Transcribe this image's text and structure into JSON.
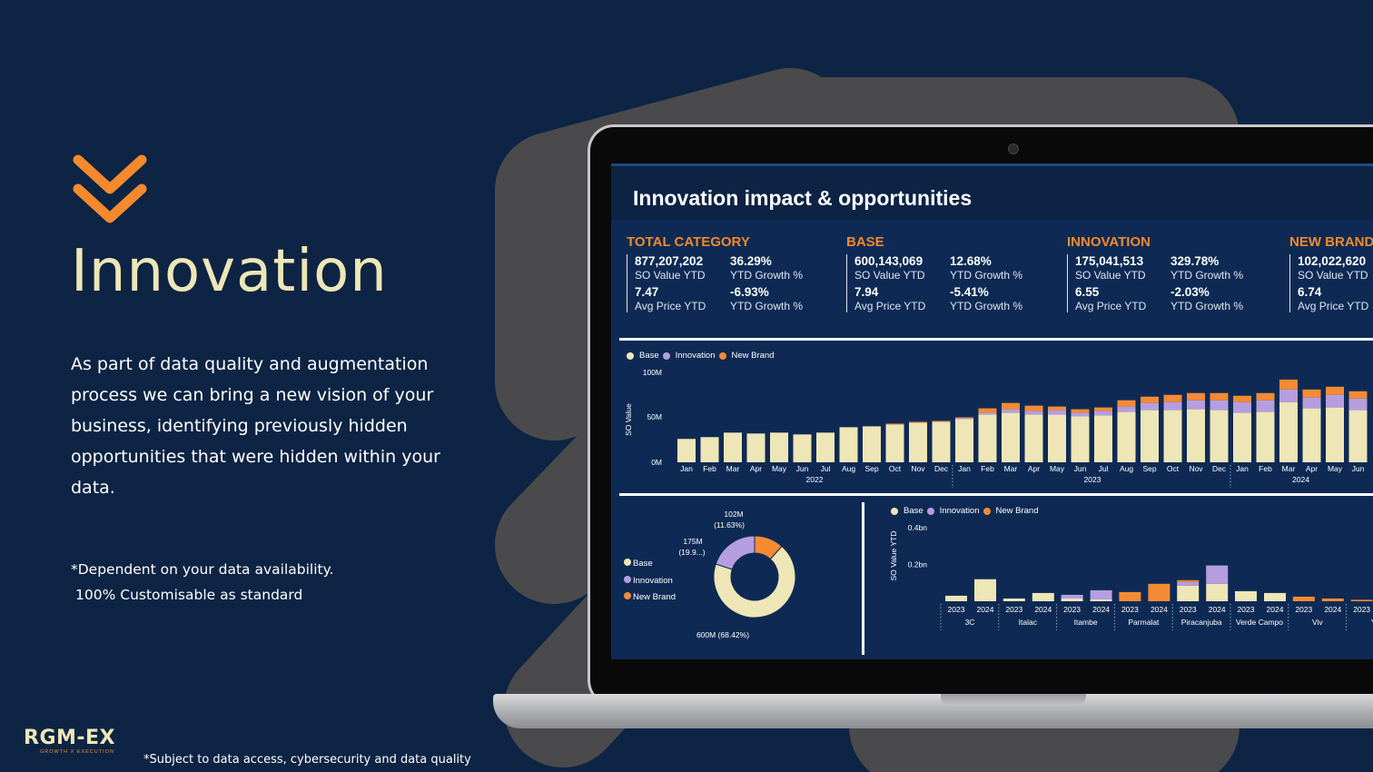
{
  "left": {
    "title": "Innovation",
    "description": "As part of data quality and augmentation process we can bring a new vision of your business, identifying previously hidden opportunities that were hidden within your data.",
    "note1": "*Dependent on your data availability.",
    "note2": "100% Customisable as standard",
    "logo_main": "RGM-EX",
    "logo_sub": "GROWTH X EXECUTION",
    "footnote": "*Subject to data access, cybersecurity and data quality"
  },
  "colors": {
    "background": "#0d2444",
    "base": "#eee6b6",
    "innovation": "#b59ee0",
    "new_brand": "#f58a35",
    "accent": "#f08a2a"
  },
  "dashboard": {
    "title": "Innovation impact & opportunities",
    "kpis": [
      {
        "heading": "TOTAL CATEGORY",
        "v1": "877,207,202",
        "l1": "SO Value YTD",
        "v2": "36.29%",
        "l2": "YTD Growth %",
        "v3": "7.47",
        "l3": "Avg Price YTD",
        "v4": "-6.93%",
        "l4": "YTD Growth %"
      },
      {
        "heading": "BASE",
        "v1": "600,143,069",
        "l1": "SO Value YTD",
        "v2": "12.68%",
        "l2": "YTD Growth %",
        "v3": "7.94",
        "l3": "Avg Price YTD",
        "v4": "-5.41%",
        "l4": "YTD Growth %"
      },
      {
        "heading": "INNOVATION",
        "v1": "175,041,513",
        "l1": "SO Value YTD",
        "v2": "329.78%",
        "l2": "YTD Growth %",
        "v3": "6.55",
        "l3": "Avg Price YTD",
        "v4": "-2.03%",
        "l4": "YTD Growth %"
      },
      {
        "heading": "NEW BRAND",
        "v1": "102,022,620",
        "l1": "SO Value YTD",
        "v2": "",
        "l2": "",
        "v3": "6.74",
        "l3": "Avg Price YTD",
        "v4": "",
        "l4": ""
      }
    ],
    "legend": [
      "Base",
      "Innovation",
      "New Brand"
    ]
  },
  "chart_data": [
    {
      "type": "bar",
      "stacked": true,
      "ylabel": "SO Value",
      "yticks": [
        "0M",
        "50M",
        "100M"
      ],
      "ylim": [
        0,
        100
      ],
      "categories": [
        "Jan",
        "Feb",
        "Mar",
        "Apr",
        "May",
        "Jun",
        "Jul",
        "Aug",
        "Sep",
        "Oct",
        "Nov",
        "Dec",
        "Jan",
        "Feb",
        "Mar",
        "Apr",
        "May",
        "Jun",
        "Jul",
        "Aug",
        "Sep",
        "Oct",
        "Nov",
        "Dec",
        "Jan",
        "Feb",
        "Mar",
        "Apr",
        "May",
        "Jun"
      ],
      "years": [
        {
          "label": "2022",
          "span": 12
        },
        {
          "label": "2023",
          "span": 12
        },
        {
          "label": "2024",
          "span": 6
        }
      ],
      "series": [
        {
          "name": "Base",
          "values": [
            26,
            28,
            33,
            32,
            33,
            31,
            33,
            39,
            40,
            42,
            44,
            45,
            48,
            53,
            55,
            53,
            53,
            51,
            52,
            56,
            58,
            58,
            59,
            58,
            55,
            56,
            67,
            60,
            61,
            58
          ]
        },
        {
          "name": "Innovation",
          "values": [
            0,
            0,
            0,
            0,
            0,
            0,
            0,
            0,
            0,
            0,
            0,
            0,
            1,
            2,
            4,
            4,
            5,
            4,
            5,
            6,
            8,
            9,
            10,
            11,
            12,
            13,
            14,
            12,
            14,
            13
          ]
        },
        {
          "name": "New Brand",
          "values": [
            0,
            0,
            0,
            0,
            0,
            0,
            0,
            0,
            0,
            1,
            1,
            1,
            1,
            5,
            7,
            6,
            4,
            4,
            4,
            7,
            7,
            8,
            8,
            8,
            7,
            8,
            11,
            9,
            9,
            8
          ]
        }
      ]
    },
    {
      "type": "pie",
      "donut": true,
      "slices": [
        {
          "name": "Base",
          "value": 600,
          "label": "600M (68.42%)"
        },
        {
          "name": "Innovation",
          "value": 175,
          "label": "175M (19.9...)"
        },
        {
          "name": "New Brand",
          "value": 102,
          "label": "102M (11.63%)"
        }
      ],
      "label_lines": {
        "nb1": "102M",
        "nb2": "(11.63%)",
        "in1": "175M",
        "in2": "(19.9...)",
        "base": "600M (68.42%)"
      }
    },
    {
      "type": "bar",
      "stacked": true,
      "ylabel": "SO Value YTD",
      "yticks": [
        "0.2bn",
        "0.4bn"
      ],
      "ylim": [
        0,
        0.5
      ],
      "groups": [
        {
          "brand": "3C",
          "years": [
            {
              "y": "2023",
              "base": 0.03,
              "innov": 0,
              "nb": 0
            },
            {
              "y": "2024",
              "base": 0.12,
              "innov": 0,
              "nb": 0
            }
          ]
        },
        {
          "brand": "Italac",
          "years": [
            {
              "y": "2023",
              "base": 0.015,
              "innov": 0,
              "nb": 0
            },
            {
              "y": "2024",
              "base": 0.045,
              "innov": 0,
              "nb": 0
            }
          ]
        },
        {
          "brand": "Itambe",
          "years": [
            {
              "y": "2023",
              "base": 0.015,
              "innov": 0.02,
              "nb": 0
            },
            {
              "y": "2024",
              "base": 0.01,
              "innov": 0.05,
              "nb": 0
            }
          ]
        },
        {
          "brand": "Parmalat",
          "years": [
            {
              "y": "2023",
              "base": 0,
              "innov": 0,
              "nb": 0.05
            },
            {
              "y": "2024",
              "base": 0,
              "innov": 0,
              "nb": 0.095
            }
          ]
        },
        {
          "brand": "Piracanjuba",
          "years": [
            {
              "y": "2023",
              "base": 0.085,
              "innov": 0.02,
              "nb": 0.01
            },
            {
              "y": "2024",
              "base": 0.095,
              "innov": 0.1,
              "nb": 0
            }
          ]
        },
        {
          "brand": "Verde Campo",
          "years": [
            {
              "y": "2023",
              "base": 0.055,
              "innov": 0,
              "nb": 0
            },
            {
              "y": "2024",
              "base": 0.045,
              "innov": 0,
              "nb": 0
            }
          ]
        },
        {
          "brand": "Viv",
          "years": [
            {
              "y": "2023",
              "base": 0,
              "innov": 0,
              "nb": 0.025
            },
            {
              "y": "2024",
              "base": 0,
              "innov": 0,
              "nb": 0.015
            }
          ]
        },
        {
          "brand": "Yo",
          "years": [
            {
              "y": "2023",
              "base": 0,
              "innov": 0,
              "nb": 0.008
            }
          ]
        }
      ]
    }
  ]
}
